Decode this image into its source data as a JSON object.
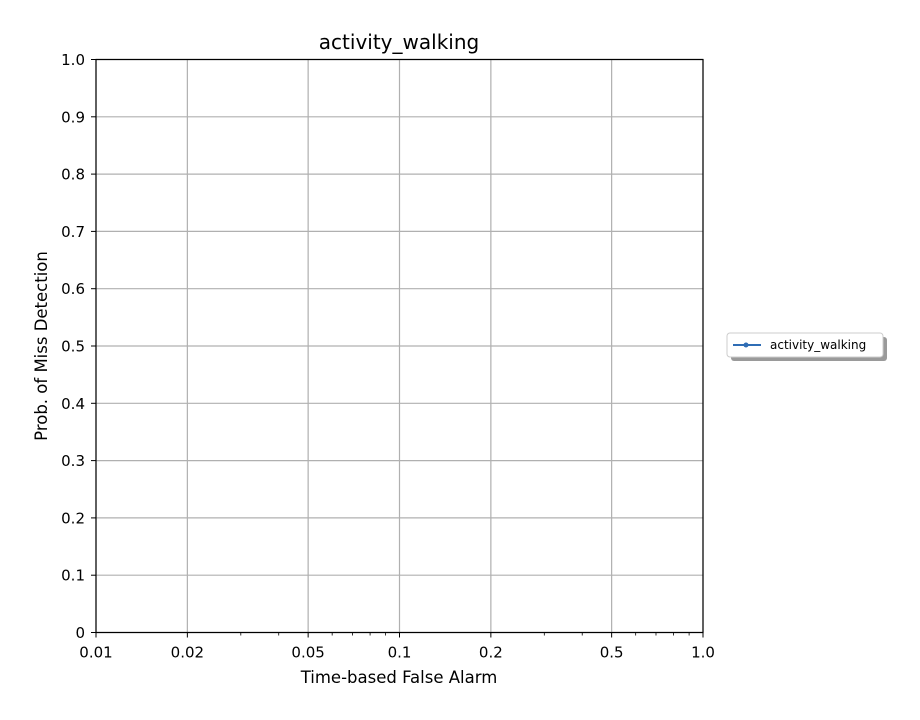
{
  "chart_data": {
    "type": "line",
    "title": "activity_walking",
    "xlabel": "Time-based False Alarm",
    "ylabel": "Prob. of Miss Detection",
    "xscale": "log",
    "xlim": [
      0.01,
      1.0
    ],
    "ylim": [
      0,
      1.0
    ],
    "xticks": [
      0.01,
      0.02,
      0.05,
      0.1,
      0.2,
      0.5,
      1.0
    ],
    "xtick_labels": [
      "0.01",
      "0.02",
      "0.05",
      "0.1",
      "0.2",
      "0.5",
      "1.0"
    ],
    "yticks": [
      0,
      0.1,
      0.2,
      0.3,
      0.4,
      0.5,
      0.6,
      0.7,
      0.8,
      0.9,
      1.0
    ],
    "ytick_labels": [
      "0",
      "0.1",
      "0.2",
      "0.3",
      "0.4",
      "0.5",
      "0.6",
      "0.7",
      "0.8",
      "0.9",
      "1.0"
    ],
    "grid": true,
    "legend_position": "right",
    "series": [
      {
        "name": "activity_walking",
        "color": "#2f6db5",
        "x": [],
        "y": []
      }
    ]
  }
}
